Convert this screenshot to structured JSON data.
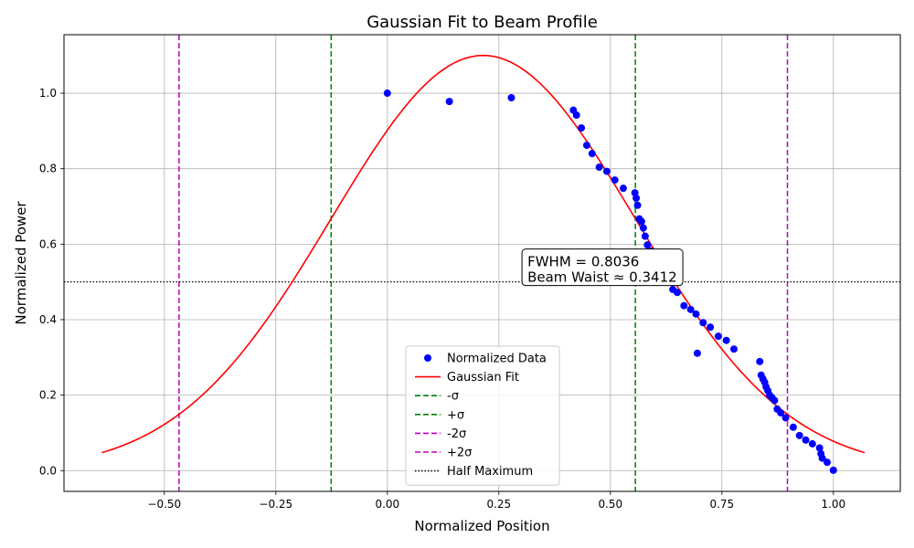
{
  "chart_data": {
    "type": "scatter",
    "title": "Gaussian Fit to Beam Profile",
    "xlabel": "Normalized Position",
    "ylabel": "Normalized Power",
    "xlim": [
      -0.725,
      1.15
    ],
    "ylim": [
      -0.055,
      1.155
    ],
    "xticks": [
      -0.5,
      -0.25,
      0.0,
      0.25,
      0.5,
      0.75,
      1.0
    ],
    "xtick_labels": [
      "−0.50",
      "−0.25",
      "0.00",
      "0.25",
      "0.50",
      "0.75",
      "1.00"
    ],
    "yticks": [
      0.0,
      0.2,
      0.4,
      0.6,
      0.8,
      1.0
    ],
    "ytick_labels": [
      "0.0",
      "0.2",
      "0.4",
      "0.6",
      "0.8",
      "1.0"
    ],
    "grid": true,
    "legend_position": "lower-center",
    "series": [
      {
        "name": "Normalized Data",
        "kind": "points",
        "color": "#0000ff",
        "x": [
          0.0,
          0.139,
          0.278,
          0.417,
          0.424,
          0.435,
          0.447,
          0.459,
          0.475,
          0.492,
          0.51,
          0.529,
          0.555,
          0.558,
          0.561,
          0.565,
          0.57,
          0.574,
          0.578,
          0.583,
          0.59,
          0.6,
          0.61,
          0.62,
          0.63,
          0.64,
          0.65,
          0.665,
          0.68,
          0.692,
          0.695,
          0.708,
          0.724,
          0.742,
          0.76,
          0.777,
          0.835,
          0.838,
          0.842,
          0.846,
          0.849,
          0.853,
          0.857,
          0.862,
          0.868,
          0.874,
          0.882,
          0.893,
          0.91,
          0.924,
          0.938,
          0.953,
          0.969,
          0.972,
          0.975,
          0.986,
          1.0
        ],
        "y": [
          1.0,
          0.978,
          0.988,
          0.955,
          0.942,
          0.908,
          0.862,
          0.84,
          0.804,
          0.793,
          0.77,
          0.748,
          0.736,
          0.722,
          0.703,
          0.667,
          0.66,
          0.643,
          0.621,
          0.598,
          0.582,
          0.568,
          0.552,
          0.535,
          0.51,
          0.48,
          0.472,
          0.437,
          0.427,
          0.415,
          0.311,
          0.392,
          0.38,
          0.356,
          0.345,
          0.322,
          0.289,
          0.253,
          0.243,
          0.234,
          0.222,
          0.212,
          0.2,
          0.194,
          0.186,
          0.163,
          0.153,
          0.14,
          0.115,
          0.093,
          0.081,
          0.071,
          0.06,
          0.045,
          0.033,
          0.022,
          0.001
        ]
      },
      {
        "name": "Gaussian Fit",
        "kind": "curve",
        "color": "#ff0000",
        "amplitude": 1.1,
        "center": 0.215,
        "sigma": 0.3412,
        "x_range": [
          -0.64,
          1.07
        ]
      },
      {
        "name": "-σ",
        "kind": "vline",
        "x": -0.126,
        "color": "#008000",
        "dash": "dashed"
      },
      {
        "name": "+σ",
        "kind": "vline",
        "x": 0.556,
        "color": "#008000",
        "dash": "dashed"
      },
      {
        "name": "-2σ",
        "kind": "vline",
        "x": -0.467,
        "color": "#bf00bf",
        "dash": "dashed"
      },
      {
        "name": "+2σ",
        "kind": "vline",
        "x": 0.897,
        "color": "#bf00bf",
        "dash": "dashed"
      },
      {
        "name": "Half Maximum",
        "kind": "hline",
        "y": 0.5,
        "color": "#000000",
        "dash": "dotted"
      }
    ],
    "annotation": {
      "lines": [
        "FWHM = 0.8036",
        "Beam Waist ≈ 0.3412"
      ],
      "x": 0.31,
      "y": 0.5
    }
  }
}
